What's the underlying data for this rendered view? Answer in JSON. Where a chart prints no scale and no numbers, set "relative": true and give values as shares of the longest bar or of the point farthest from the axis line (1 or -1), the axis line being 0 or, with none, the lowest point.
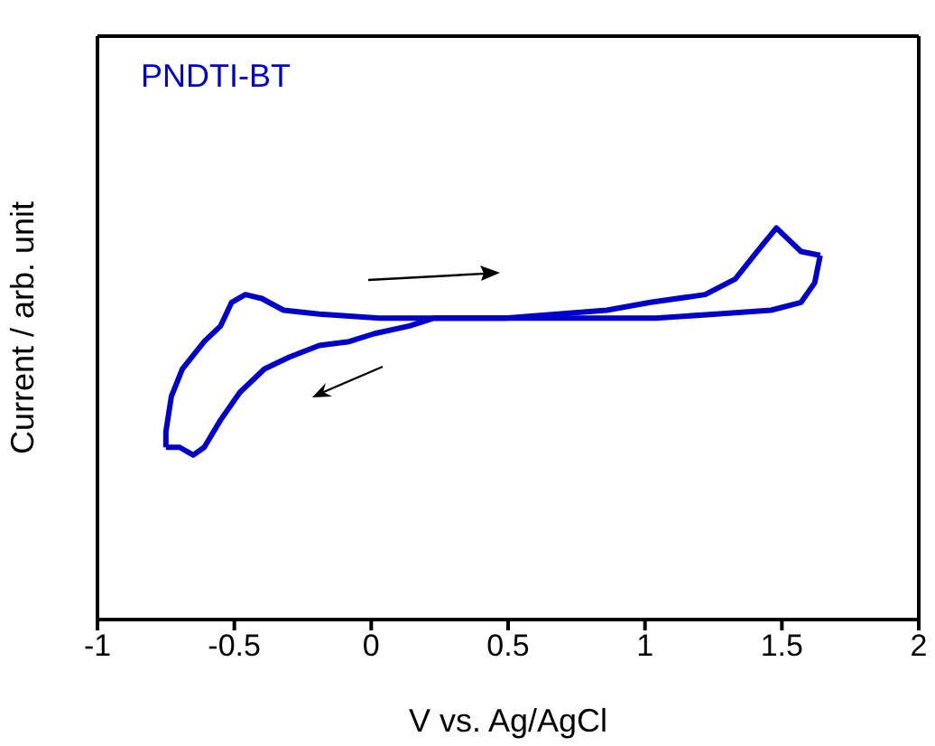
{
  "chart_data": {
    "type": "line",
    "xlabel": "V vs. Ag/AgCl",
    "ylabel": "Current / arb. unit",
    "relative": true,
    "xlim": [
      -1,
      2
    ],
    "xticks": [
      -1,
      -0.5,
      0,
      0.5,
      1,
      1.5,
      2
    ],
    "grid": false,
    "marker": "none",
    "line_style": "solid",
    "series": [
      {
        "name": "PNDTI-BT",
        "color": "#0000cc",
        "x": [
          -0.75,
          -0.75,
          -0.73,
          -0.69,
          -0.61,
          -0.55,
          -0.51,
          -0.46,
          -0.4,
          -0.32,
          -0.19,
          0.03,
          0.49,
          0.86,
          1.02,
          1.22,
          1.33,
          1.41,
          1.48,
          1.51,
          1.57,
          1.64
        ],
        "values": [
          0.44,
          0.48,
          0.57,
          0.64,
          0.71,
          0.75,
          0.81,
          0.83,
          0.82,
          0.79,
          0.78,
          0.77,
          0.77,
          0.79,
          0.81,
          0.83,
          0.87,
          0.94,
          1,
          0.98,
          0.94,
          0.93
        ]
      },
      {
        "color": "#0000cc",
        "x": [
          1.64,
          1.62,
          1.57,
          1.46,
          1.26,
          1.04,
          0.71,
          0.49,
          0.23,
          0.14,
          0.01,
          -0.08,
          -0.19,
          -0.3,
          -0.39,
          -0.48,
          -0.55,
          -0.61,
          -0.65,
          -0.7,
          -0.75
        ],
        "values": [
          0.93,
          0.86,
          0.81,
          0.79,
          0.78,
          0.77,
          0.77,
          0.77,
          0.77,
          0.75,
          0.73,
          0.71,
          0.7,
          0.67,
          0.64,
          0.58,
          0.51,
          0.44,
          0.42,
          0.44,
          0.44
        ]
      }
    ]
  }
}
